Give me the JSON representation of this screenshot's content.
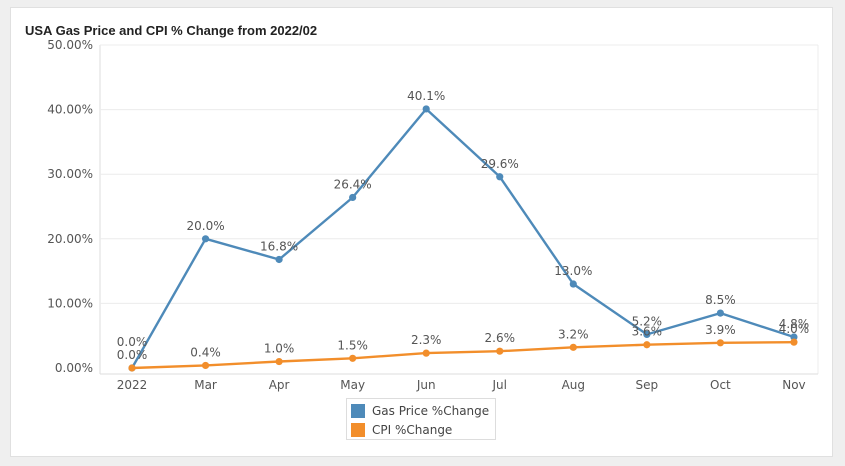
{
  "chart_data": {
    "type": "line",
    "title": "USA Gas Price and CPI % Change from 2022/02",
    "xlabel": "",
    "ylabel": "",
    "categories": [
      "2022",
      "Mar",
      "Apr",
      "May",
      "Jun",
      "Jul",
      "Aug",
      "Sep",
      "Oct",
      "Nov"
    ],
    "ylim": [
      0,
      50
    ],
    "yticks": [
      "0.00%",
      "10.00%",
      "20.00%",
      "30.00%",
      "40.00%",
      "50.00%"
    ],
    "grid": true,
    "legend_position": "bottom",
    "series": [
      {
        "name": "Gas Price %Change",
        "color": "#4e8ab9",
        "values": [
          0.0,
          20.0,
          16.8,
          26.4,
          40.1,
          29.6,
          13.0,
          5.2,
          8.5,
          4.8
        ],
        "labels": [
          "0.0%",
          "20.0%",
          "16.8%",
          "26.4%",
          "40.1%",
          "29.6%",
          "13.0%",
          "5.2%",
          "8.5%",
          "4.8%"
        ]
      },
      {
        "name": "CPI %Change",
        "color": "#f28e2b",
        "values": [
          0.0,
          0.4,
          1.0,
          1.5,
          2.3,
          2.6,
          3.2,
          3.6,
          3.9,
          4.0
        ],
        "labels": [
          "0.0%",
          "0.4%",
          "1.0%",
          "1.5%",
          "2.3%",
          "2.6%",
          "3.2%",
          "3.6%",
          "3.9%",
          "4.0%"
        ]
      }
    ]
  }
}
